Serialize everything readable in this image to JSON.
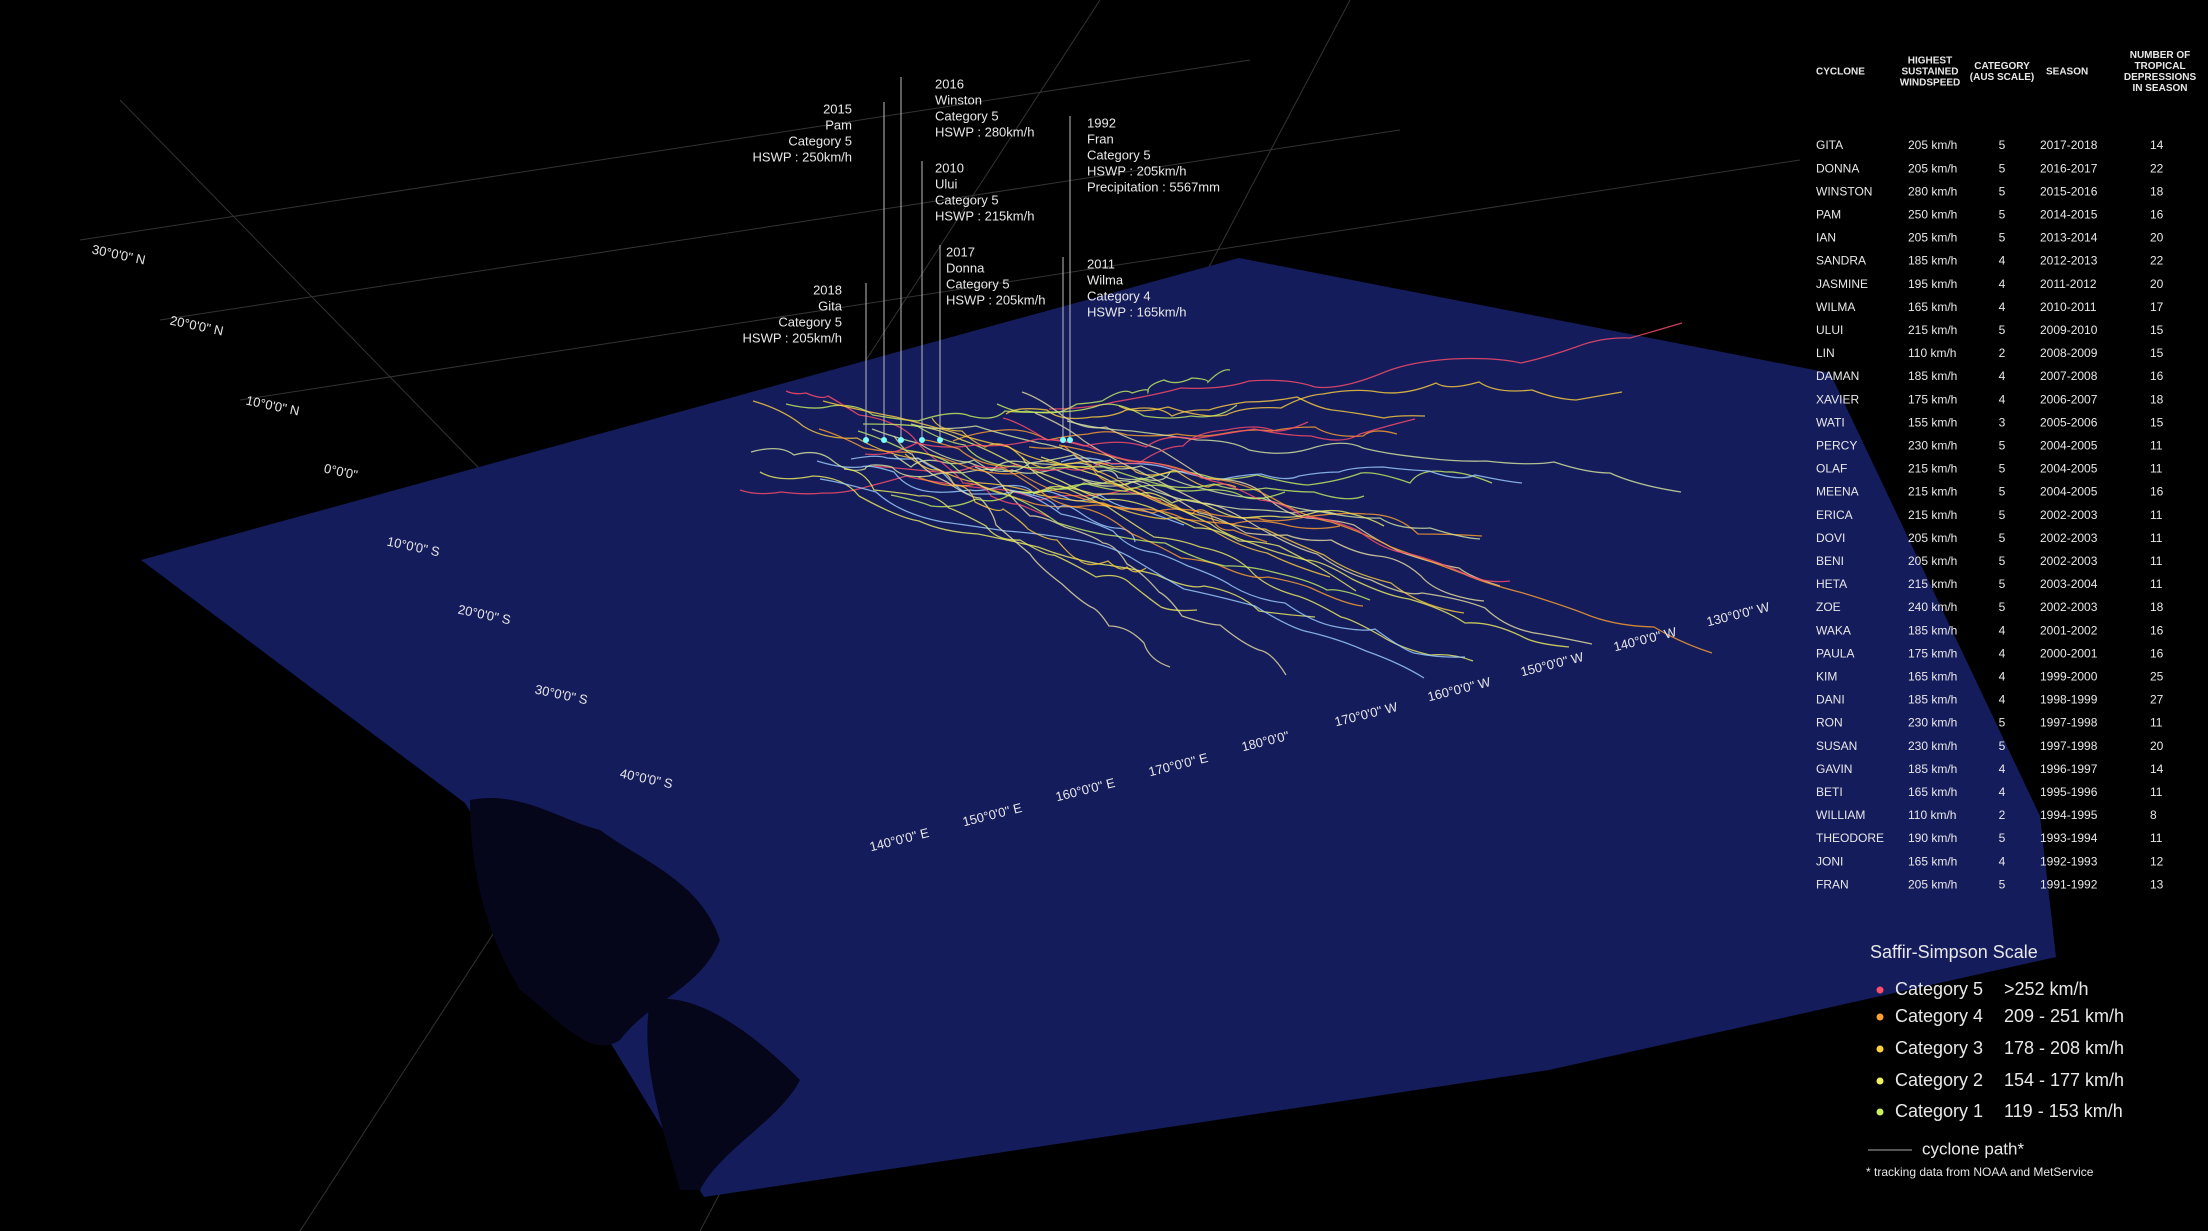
{
  "map": {
    "latitude_labels": [
      "30°0'0\" N",
      "20°0'0\" N",
      "10°0'0\" N",
      "0°0'0\"",
      "10°0'0\" S",
      "20°0'0\" S",
      "30°0'0\" S",
      "40°0'0\" S"
    ],
    "longitude_labels": [
      "140°0'0\" E",
      "150°0'0\" E",
      "160°0'0\" E",
      "170°0'0\" E",
      "180°0'0\"",
      "170°0'0\" W",
      "160°0'0\" W",
      "150°0'0\" W",
      "140°0'0\" W",
      "130°0'0\" W"
    ]
  },
  "annotations": [
    {
      "lines": [
        "2015",
        "Pam",
        "Category 5",
        "HSWP : 250km/h"
      ]
    },
    {
      "lines": [
        "2016",
        "Winston",
        "Category 5",
        "HSWP : 280km/h"
      ]
    },
    {
      "lines": [
        "1992",
        "Fran",
        "Category 5",
        "HSWP : 205km/h",
        "Precipitation : 5567mm"
      ]
    },
    {
      "lines": [
        "2010",
        "Ului",
        "Category 5",
        "HSWP : 215km/h"
      ]
    },
    {
      "lines": [
        "2017",
        "Donna",
        "Category 5",
        "HSWP : 205km/h"
      ]
    },
    {
      "lines": [
        "2011",
        "Wilma",
        "Category 4",
        "HSWP : 165km/h"
      ]
    },
    {
      "lines": [
        "2018",
        "Gita",
        "Category 5",
        "HSWP : 205km/h"
      ]
    }
  ],
  "table": {
    "headers": [
      [
        "CYCLONE"
      ],
      [
        "HIGHEST",
        "SUSTAINED",
        "WINDSPEED"
      ],
      [
        "CATEGORY",
        "(AUS SCALE)"
      ],
      [
        "SEASON"
      ],
      [
        "NUMBER OF",
        "TROPICAL",
        "DEPRESSIONS",
        "IN SEASON"
      ]
    ],
    "rows": [
      [
        "GITA",
        "205 km/h",
        "5",
        "2017-2018",
        "14"
      ],
      [
        "DONNA",
        "205 km/h",
        "5",
        "2016-2017",
        "22"
      ],
      [
        "WINSTON",
        "280 km/h",
        "5",
        "2015-2016",
        "18"
      ],
      [
        "PAM",
        "250 km/h",
        "5",
        "2014-2015",
        "16"
      ],
      [
        "IAN",
        "205 km/h",
        "5",
        "2013-2014",
        "20"
      ],
      [
        "SANDRA",
        "185 km/h",
        "4",
        "2012-2013",
        "22"
      ],
      [
        "JASMINE",
        "195 km/h",
        "4",
        "2011-2012",
        "20"
      ],
      [
        "WILMA",
        "165 km/h",
        "4",
        "2010-2011",
        "17"
      ],
      [
        "ULUI",
        "215 km/h",
        "5",
        "2009-2010",
        "15"
      ],
      [
        "LIN",
        "110 km/h",
        "2",
        "2008-2009",
        "15"
      ],
      [
        "DAMAN",
        "185 km/h",
        "4",
        "2007-2008",
        "16"
      ],
      [
        "XAVIER",
        "175 km/h",
        "4",
        "2006-2007",
        "18"
      ],
      [
        "WATI",
        "155 km/h",
        "3",
        "2005-2006",
        "15"
      ],
      [
        "PERCY",
        "230 km/h",
        "5",
        "2004-2005",
        "11"
      ],
      [
        "OLAF",
        "215 km/h",
        "5",
        "2004-2005",
        "11"
      ],
      [
        "MEENA",
        "215 km/h",
        "5",
        "2004-2005",
        "16"
      ],
      [
        "ERICA",
        "215 km/h",
        "5",
        "2002-2003",
        "11"
      ],
      [
        "DOVI",
        "205 km/h",
        "5",
        "2002-2003",
        "11"
      ],
      [
        "BENI",
        "205 km/h",
        "5",
        "2002-2003",
        "11"
      ],
      [
        "HETA",
        "215 km/h",
        "5",
        "2003-2004",
        "11"
      ],
      [
        "ZOE",
        "240 km/h",
        "5",
        "2002-2003",
        "18"
      ],
      [
        "WAKA",
        "185 km/h",
        "4",
        "2001-2002",
        "16"
      ],
      [
        "PAULA",
        "175 km/h",
        "4",
        "2000-2001",
        "16"
      ],
      [
        "KIM",
        "165 km/h",
        "4",
        "1999-2000",
        "25"
      ],
      [
        "DANI",
        "185 km/h",
        "4",
        "1998-1999",
        "27"
      ],
      [
        "RON",
        "230 km/h",
        "5",
        "1997-1998",
        "11"
      ],
      [
        "SUSAN",
        "230 km/h",
        "5",
        "1997-1998",
        "20"
      ],
      [
        "GAVIN",
        "185 km/h",
        "4",
        "1996-1997",
        "14"
      ],
      [
        "BETI",
        "165 km/h",
        "4",
        "1995-1996",
        "11"
      ],
      [
        "WILLIAM",
        "110 km/h",
        "2",
        "1994-1995",
        "8"
      ],
      [
        "THEODORE",
        "190 km/h",
        "5",
        "1993-1994",
        "11"
      ],
      [
        "JONI",
        "165 km/h",
        "4",
        "1992-1993",
        "12"
      ],
      [
        "FRAN",
        "205 km/h",
        "5",
        "1991-1992",
        "13"
      ]
    ]
  },
  "legend": {
    "title": "Saffir-Simpson Scale",
    "items": [
      {
        "label": "Category 5",
        "range": ">252 km/h",
        "color": "#ff4d6a"
      },
      {
        "label": "Category 4",
        "range": "209 - 251 km/h",
        "color": "#ffa030"
      },
      {
        "label": "Category 3",
        "range": "178 - 208 km/h",
        "color": "#ffd040"
      },
      {
        "label": "Category 2",
        "range": "154 - 177 km/h",
        "color": "#f0f060"
      },
      {
        "label": "Category 1",
        "range": "119 - 153 km/h",
        "color": "#c8f060"
      }
    ],
    "path_label": "cyclone path*",
    "footnote": "* tracking data from NOAA and MetService"
  }
}
